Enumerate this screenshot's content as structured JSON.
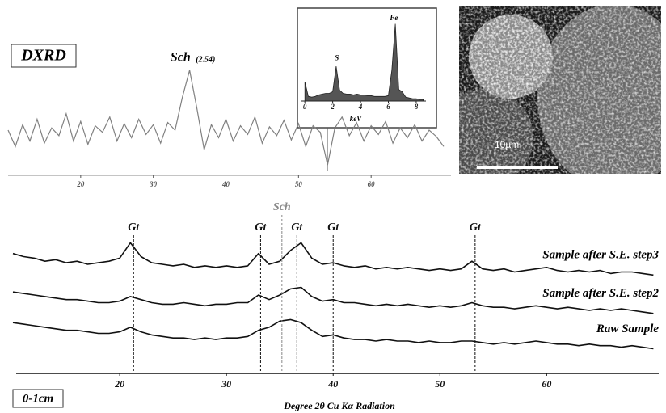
{
  "chart_data": [
    {
      "type": "line",
      "label": "DXRD",
      "color": "#808080",
      "x": [
        10,
        11,
        12,
        13,
        14,
        15,
        16,
        17,
        18,
        19,
        20,
        21,
        22,
        23,
        24,
        25,
        26,
        27,
        28,
        29,
        30,
        31,
        32,
        33,
        34,
        35,
        36,
        37,
        38,
        39,
        40,
        41,
        42,
        43,
        44,
        45,
        46,
        47,
        48,
        49,
        50,
        51,
        52,
        53,
        54,
        55,
        56,
        57,
        58,
        59,
        60,
        61,
        62,
        63,
        64,
        65,
        66,
        67,
        68,
        69,
        70
      ],
      "values": [
        40,
        25,
        45,
        30,
        50,
        28,
        42,
        35,
        55,
        30,
        48,
        27,
        44,
        38,
        52,
        30,
        46,
        33,
        50,
        36,
        45,
        28,
        47,
        40,
        70,
        95,
        60,
        22,
        45,
        33,
        50,
        30,
        44,
        36,
        52,
        28,
        43,
        35,
        49,
        31,
        46,
        25,
        44,
        38,
        8,
        42,
        52,
        35,
        47,
        30,
        44,
        36,
        48,
        28,
        42,
        33,
        45,
        30,
        40,
        34,
        25
      ],
      "xlim": [
        10,
        71
      ],
      "ylim": [
        0,
        100
      ],
      "xticks": [
        20,
        30,
        40,
        50,
        60
      ],
      "annotations": [
        {
          "text": "Sch",
          "sub": "(2.54)",
          "x": 35.3
        }
      ]
    },
    {
      "type": "area",
      "color": "#555555",
      "xlabel": "keV",
      "x": [
        0,
        0.25,
        0.5,
        0.75,
        1,
        1.25,
        1.5,
        1.75,
        2,
        2.25,
        2.5,
        2.75,
        3,
        3.25,
        3.5,
        3.75,
        4,
        4.25,
        4.5,
        4.75,
        5,
        5.25,
        5.5,
        5.75,
        6,
        6.25,
        6.5,
        6.75,
        7,
        7.25,
        7.5,
        7.75,
        8,
        8.25,
        8.5
      ],
      "values": [
        25,
        6,
        5,
        6,
        8,
        9,
        10,
        10,
        12,
        45,
        14,
        10,
        9,
        9,
        8,
        9,
        8,
        8,
        7,
        7,
        6,
        6,
        6,
        6,
        7,
        40,
        100,
        15,
        12,
        5,
        4,
        3,
        3,
        2,
        2
      ],
      "xlim": [
        -0.3,
        8.7
      ],
      "ylim": [
        0,
        110
      ],
      "xticks": [
        0,
        2,
        4,
        6,
        8
      ],
      "annotations": [
        {
          "text": "S",
          "x": 2.3,
          "y": 55
        },
        {
          "text": "Fe",
          "x": 6.4,
          "y": 107
        }
      ]
    },
    {
      "type": "line",
      "label": "0-1cm",
      "xlabel": "Degree 2θ   Cu Kα Radiation",
      "x": [
        10,
        11,
        12,
        13,
        14,
        15,
        16,
        17,
        18,
        19,
        20,
        21,
        22,
        23,
        24,
        25,
        26,
        27,
        28,
        29,
        30,
        31,
        32,
        33,
        34,
        35,
        36,
        37,
        38,
        39,
        40,
        41,
        42,
        43,
        44,
        45,
        46,
        47,
        48,
        49,
        50,
        51,
        52,
        53,
        54,
        55,
        56,
        57,
        58,
        59,
        60,
        61,
        62,
        63,
        64,
        65,
        66,
        67,
        68,
        69,
        70
      ],
      "series": [
        {
          "name": "Sample after S.E. step3",
          "color": "#111111",
          "values": [
            77,
            75,
            74,
            72,
            73,
            71,
            72,
            70,
            71,
            72,
            74,
            84,
            75,
            71,
            70,
            69,
            70,
            68,
            69,
            68,
            69,
            68,
            69,
            77,
            70,
            72,
            79,
            84,
            74,
            70,
            71,
            69,
            68,
            69,
            67,
            68,
            67,
            68,
            67,
            66,
            67,
            66,
            67,
            72,
            67,
            66,
            67,
            65,
            66,
            67,
            68,
            66,
            65,
            66,
            65,
            66,
            64,
            65,
            65,
            64,
            63
          ]
        },
        {
          "name": "Sample after S.E. step2",
          "color": "#111111",
          "values": [
            52,
            51,
            50,
            49,
            48,
            47,
            47,
            46,
            45,
            45,
            46,
            49,
            47,
            45,
            44,
            44,
            45,
            44,
            43,
            44,
            44,
            45,
            45,
            50,
            47,
            50,
            54,
            55,
            49,
            46,
            47,
            45,
            45,
            44,
            43,
            44,
            43,
            44,
            43,
            42,
            43,
            42,
            43,
            45,
            43,
            42,
            42,
            41,
            42,
            43,
            42,
            41,
            42,
            41,
            40,
            41,
            40,
            41,
            40,
            39,
            38
          ]
        },
        {
          "name": "Raw Sample",
          "color": "#111111",
          "values": [
            32,
            31,
            30,
            29,
            28,
            27,
            27,
            26,
            25,
            25,
            26,
            29,
            26,
            24,
            23,
            22,
            22,
            21,
            22,
            21,
            22,
            22,
            23,
            27,
            29,
            33,
            34,
            32,
            27,
            23,
            24,
            22,
            21,
            21,
            20,
            21,
            20,
            20,
            19,
            20,
            19,
            19,
            20,
            20,
            19,
            18,
            19,
            18,
            19,
            20,
            19,
            18,
            18,
            17,
            18,
            17,
            17,
            16,
            17,
            16,
            15
          ]
        }
      ],
      "xlim": [
        10.3,
        70.5
      ],
      "ylim": [
        0,
        100
      ],
      "xticks": [
        20,
        30,
        40,
        50,
        60
      ],
      "annotations": [
        {
          "text": "Gt",
          "x": 21.3
        },
        {
          "text": "Gt",
          "x": 33.2
        },
        {
          "text": "Sch",
          "x": 35.2,
          "color": "#888888"
        },
        {
          "text": "Gt",
          "x": 36.6
        },
        {
          "text": "Gt",
          "x": 40
        },
        {
          "text": "Gt",
          "x": 53.3
        }
      ]
    }
  ],
  "image": {
    "scale_label": "10µm"
  }
}
